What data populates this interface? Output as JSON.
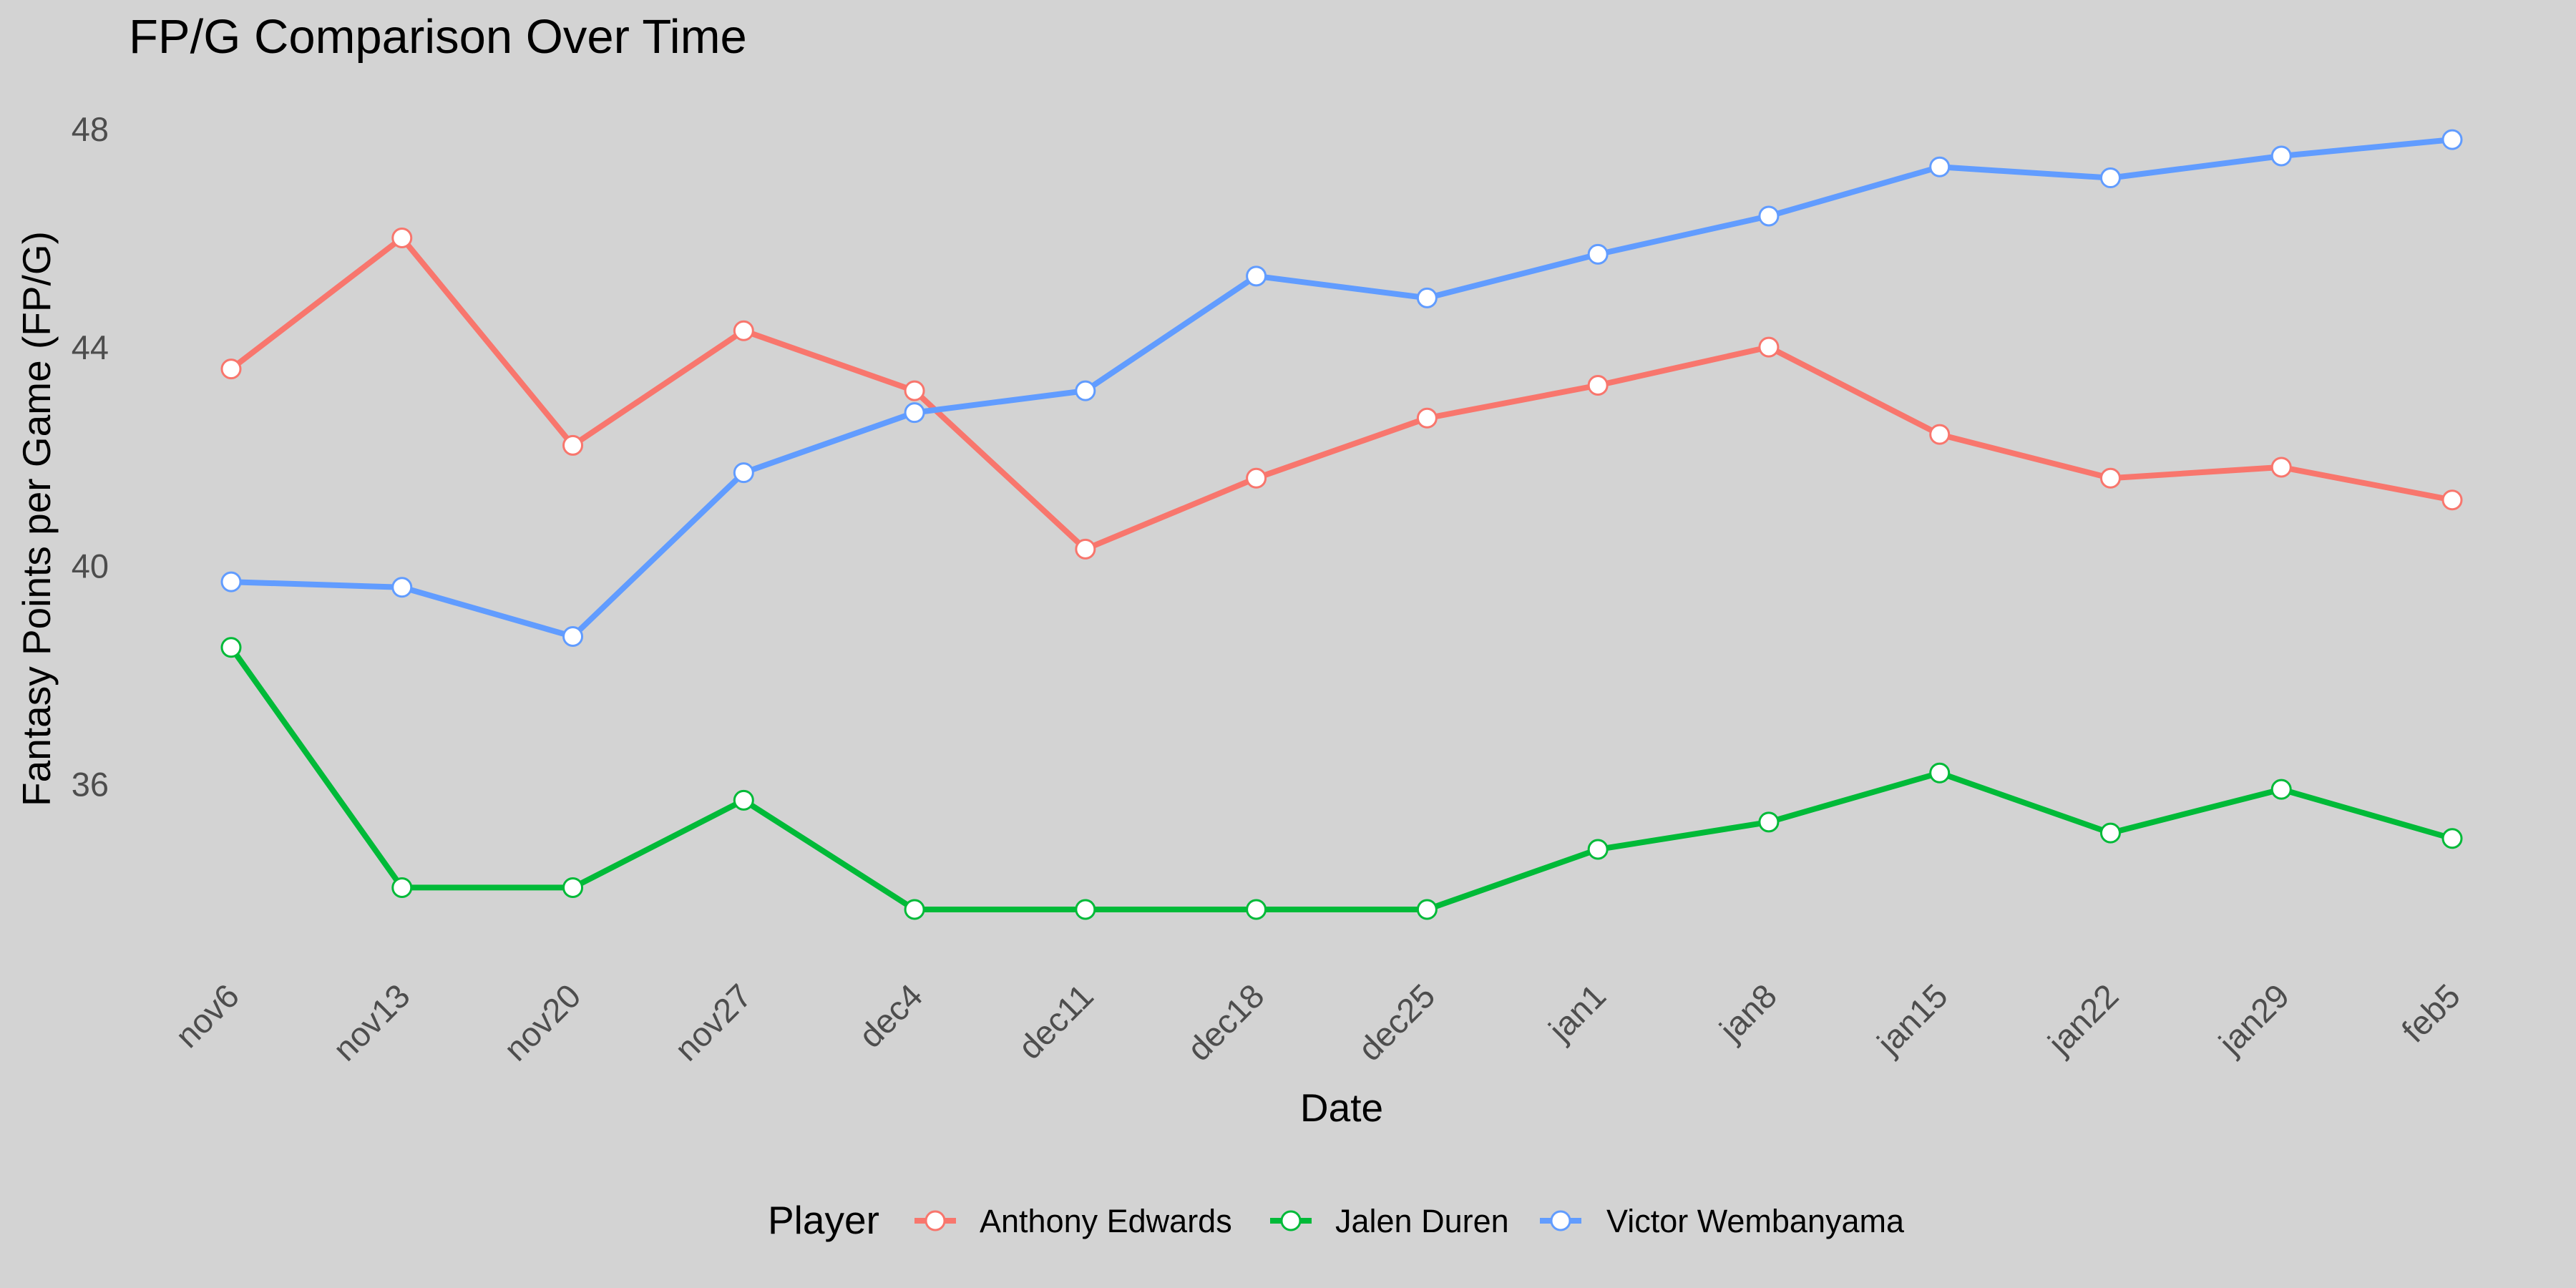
{
  "chart_data": {
    "type": "line",
    "title": "FP/G Comparison Over Time",
    "xlabel": "Date",
    "ylabel": "Fantasy Points per Game (FP/G)",
    "categories": [
      "nov6",
      "nov13",
      "nov20",
      "nov27",
      "dec4",
      "dec11",
      "dec18",
      "dec25",
      "jan1",
      "jan8",
      "jan15",
      "jan22",
      "jan29",
      "feb5"
    ],
    "ylim": [
      32.9,
      48.3
    ],
    "yticks": [
      36,
      40,
      44,
      48
    ],
    "grid": false,
    "legend": {
      "title": "Player",
      "position": "bottom",
      "entries": [
        "Anthony Edwards",
        "Jalen Duren",
        "Victor Wembanyama"
      ]
    },
    "series": [
      {
        "name": "Anthony Edwards",
        "color": "#f8766d",
        "values": [
          43.6,
          46.0,
          42.2,
          44.3,
          43.2,
          40.3,
          41.6,
          42.7,
          43.3,
          44.0,
          42.4,
          41.6,
          41.8,
          41.2
        ]
      },
      {
        "name": "Jalen Duren",
        "color": "#00ba38",
        "values": [
          38.5,
          34.1,
          34.1,
          35.7,
          33.7,
          33.7,
          33.7,
          33.7,
          34.8,
          35.3,
          36.2,
          35.1,
          35.9,
          35.0
        ]
      },
      {
        "name": "Victor Wembanyama",
        "color": "#619cff",
        "values": [
          39.7,
          39.6,
          38.7,
          41.7,
          42.8,
          43.2,
          45.3,
          44.9,
          45.7,
          46.4,
          47.3,
          47.1,
          47.5,
          47.8
        ]
      }
    ]
  }
}
